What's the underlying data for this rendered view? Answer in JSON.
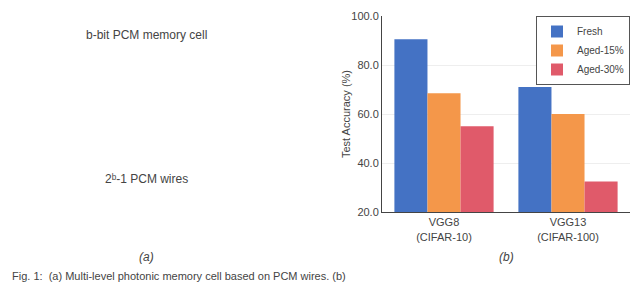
{
  "chart_data": {
    "type": "bar",
    "categories": [
      "VGG8\n(CIFAR-10)",
      "VGG13\n(CIFAR-100)"
    ],
    "series": [
      {
        "name": "Fresh",
        "color": "#4472C4",
        "values": [
          90.5,
          71.0
        ]
      },
      {
        "name": "Aged-15%",
        "color": "#F4974A",
        "values": [
          68.5,
          60.0
        ]
      },
      {
        "name": "Aged-30%",
        "color": "#E05A6A",
        "values": [
          55.0,
          32.5
        ]
      }
    ],
    "ylabel": "Test Accuracy (%)",
    "ylim": [
      20.0,
      100.0
    ],
    "yticks": [
      {
        "value": 20,
        "label": "20.0"
      },
      {
        "value": 40,
        "label": "40.0"
      },
      {
        "value": 60,
        "label": "60.0"
      },
      {
        "value": 80,
        "label": "80.0"
      },
      {
        "value": 100,
        "label": "100.0"
      }
    ],
    "grid": true,
    "legend": "upper right",
    "annotations": [
      "b-bit PCM memory cell",
      "2ᵇ-1 PCM wires",
      "(a)",
      "(b)",
      "Fig. 1:  (a) Multi-level photonic memory cell based on PCM wires. (b)"
    ]
  }
}
